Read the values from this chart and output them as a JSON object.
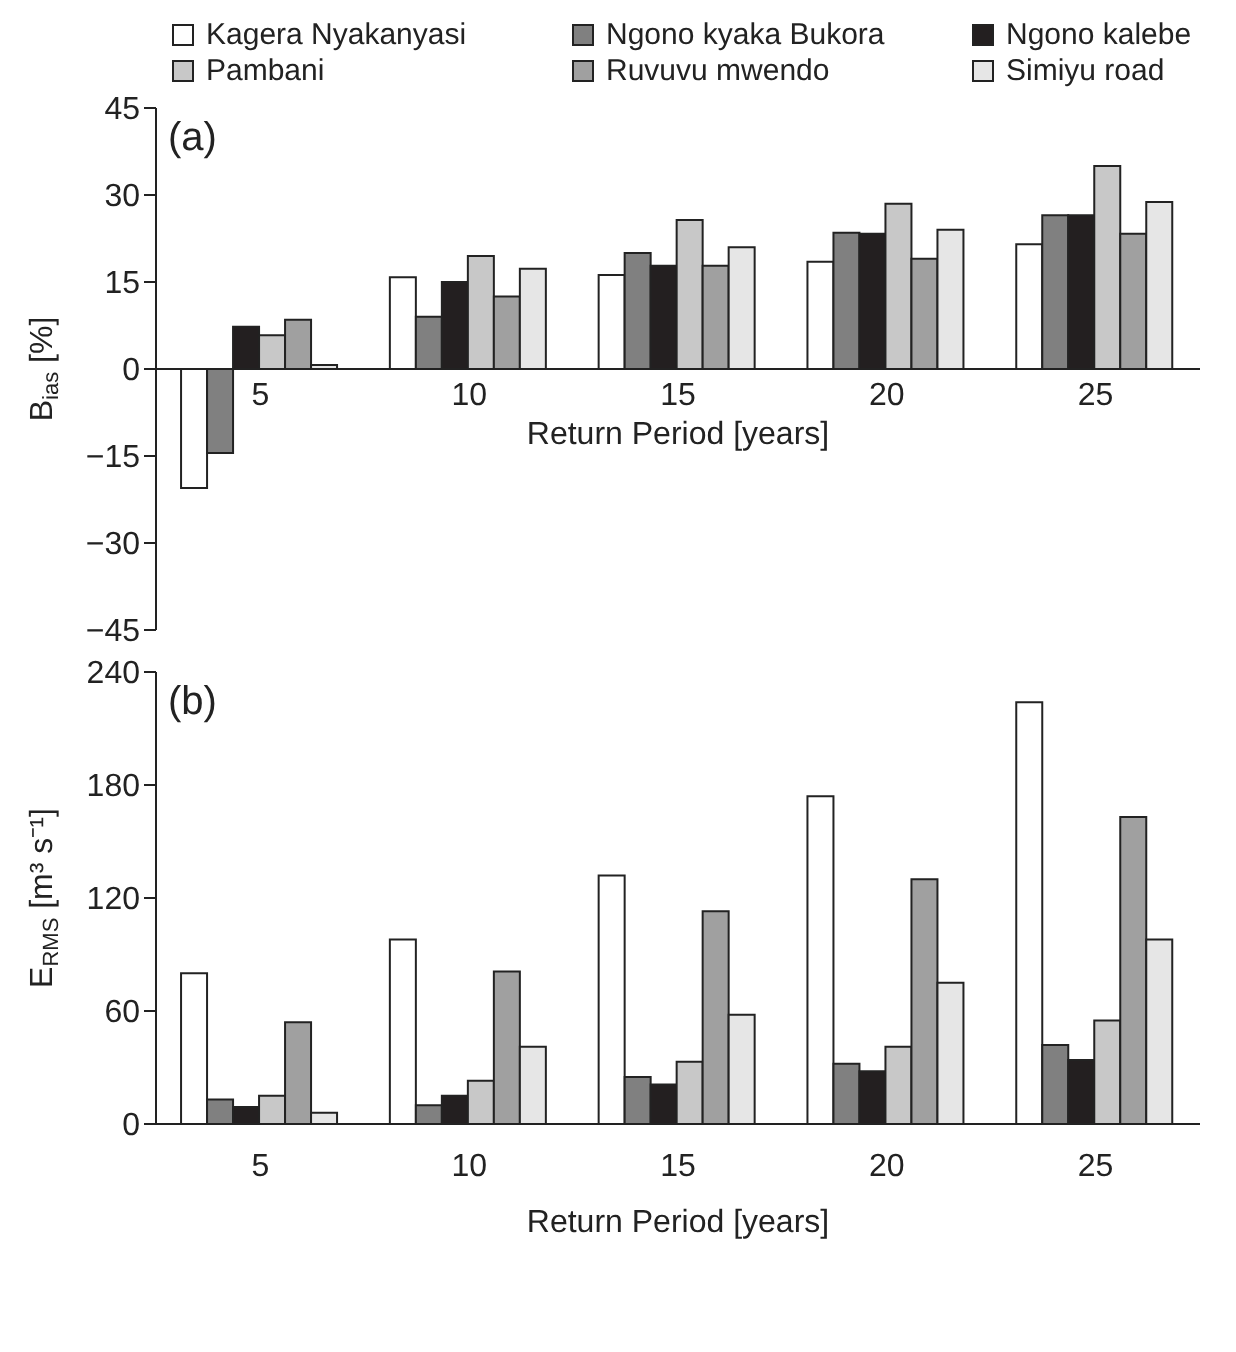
{
  "chart_data": [
    {
      "type": "bar",
      "categories": [
        "5",
        "10",
        "15",
        "20",
        "25"
      ],
      "xlabel": "Return Period [years]",
      "ylabel": "B$_{ias}$ [%]",
      "annotations": [
        "(a)"
      ],
      "legend": "top",
      "series": [
        {
          "name": "Kagera Nyakanyasi",
          "color": "#ffffff",
          "values": [
            -20.5,
            15.8,
            16.2,
            18.5,
            21.5
          ]
        },
        {
          "name": "Ngono kyaka Bukora",
          "color": "#808080",
          "values": [
            -14.5,
            9.0,
            20.0,
            23.5,
            26.5
          ]
        },
        {
          "name": "Ngono kalebe",
          "color": "#231f20",
          "values": [
            7.3,
            15.0,
            17.8,
            23.3,
            26.5
          ]
        },
        {
          "name": "Pambani",
          "color": "#c8c8c8",
          "values": [
            5.8,
            19.5,
            25.7,
            28.5,
            35.0
          ]
        },
        {
          "name": "Ruvuvu mwendo",
          "color": "#a0a0a0",
          "values": [
            8.5,
            12.5,
            17.8,
            19.0,
            23.3
          ]
        },
        {
          "name": "Simiyu road",
          "color": "#e6e6e6",
          "values": [
            0.7,
            17.3,
            21.0,
            24.0,
            28.8
          ]
        }
      ],
      "ylim": [
        -45,
        45
      ],
      "yticks": [
        {
          "value": -45,
          "label": "−45"
        },
        {
          "value": -30,
          "label": "−30"
        },
        {
          "value": -15,
          "label": "−15"
        },
        0,
        15,
        30,
        45
      ]
    },
    {
      "type": "bar",
      "categories": [
        "5",
        "10",
        "15",
        "20",
        "25"
      ],
      "xlabel": "Return Period [years]",
      "ylabel": "E$_{RMS}$ [m³ s⁻¹]",
      "annotations": [
        "(b)"
      ],
      "series": [
        {
          "color": "#ffffff",
          "values": [
            80,
            98,
            132,
            174,
            224
          ]
        },
        {
          "color": "#808080",
          "values": [
            13,
            10,
            25,
            32,
            42
          ]
        },
        {
          "color": "#231f20",
          "values": [
            9,
            15,
            21,
            28,
            34
          ]
        },
        {
          "color": "#c8c8c8",
          "values": [
            15,
            23,
            33,
            41,
            55
          ]
        },
        {
          "color": "#a0a0a0",
          "values": [
            54,
            81,
            113,
            130,
            163
          ]
        },
        {
          "color": "#e6e6e6",
          "values": [
            6,
            41,
            58,
            75,
            98
          ]
        }
      ],
      "ylim": [
        0,
        240
      ],
      "yticks": [
        0,
        60,
        120,
        180,
        240
      ]
    }
  ]
}
